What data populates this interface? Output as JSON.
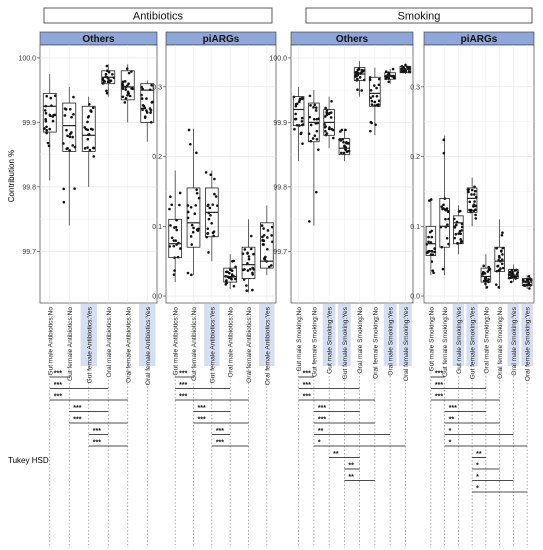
{
  "figure": {
    "y_label": "Contribution %",
    "tukey_label": "Tukey HSD",
    "groups": [
      {
        "title": "Antibiotics",
        "panels": [
          {
            "strip": "Others"
          },
          {
            "strip": "piARGs"
          }
        ]
      },
      {
        "title": "Smoking",
        "panels": [
          {
            "strip": "Others"
          },
          {
            "strip": "piARGs"
          }
        ]
      }
    ]
  },
  "chart_data": [
    {
      "type": "boxplot",
      "group": "Antibiotics",
      "panel": "Others",
      "ylim": [
        99.62,
        100.02
      ],
      "y_ticks": [
        "99.7",
        "99.8",
        "99.9",
        "100.0"
      ],
      "grid": true,
      "categories": [
        "Gut male Antibiotics:No",
        "Gut female Antibiotics:No",
        "Gut female Antibiotics:Yes",
        "Oral male Antibiotics:No",
        "Oral female Antibiotics:No",
        "Oral female Antibiotics:Yes"
      ],
      "highlighted": [
        false,
        false,
        true,
        false,
        false,
        true
      ],
      "boxes": [
        {
          "q1": 99.885,
          "median": 99.925,
          "q3": 99.945,
          "lo": 99.81,
          "hi": 99.975
        },
        {
          "q1": 99.855,
          "median": 99.895,
          "q3": 99.93,
          "lo": 99.74,
          "hi": 99.955
        },
        {
          "q1": 99.855,
          "median": 99.88,
          "q3": 99.925,
          "lo": 99.8,
          "hi": 99.94
        },
        {
          "q1": 99.96,
          "median": 99.97,
          "q3": 99.98,
          "lo": 99.94,
          "hi": 99.99
        },
        {
          "q1": 99.935,
          "median": 99.955,
          "q3": 99.98,
          "lo": 99.9,
          "hi": 99.99
        },
        {
          "q1": 99.9,
          "median": 99.95,
          "q3": 99.96,
          "lo": 99.87,
          "hi": 99.965
        }
      ],
      "significance": [
        {
          "a": 0,
          "b": 1,
          "label": "***"
        },
        {
          "a": 0,
          "b": 3,
          "label": "***"
        },
        {
          "a": 0,
          "b": 4,
          "label": "***"
        },
        {
          "a": 1,
          "b": 3,
          "label": "***"
        },
        {
          "a": 1,
          "b": 4,
          "label": "***"
        },
        {
          "a": 2,
          "b": 3,
          "label": "***"
        },
        {
          "a": 2,
          "b": 4,
          "label": "***"
        }
      ]
    },
    {
      "type": "boxplot",
      "group": "Antibiotics",
      "panel": "piARGs",
      "ylim": [
        -0.01,
        0.36
      ],
      "y_ticks": [
        "0.0",
        "0.1",
        "0.2",
        "0.3"
      ],
      "grid": true,
      "categories": [
        "Gut male Antibiotics:No",
        "Gut female Antibiotics:No",
        "Gut female Antibiotics:Yes",
        "Oral male Antibiotics:No",
        "Oral female Antibiotics:No",
        "Oral female Antibiotics:Yes"
      ],
      "highlighted": [
        false,
        false,
        true,
        false,
        false,
        true
      ],
      "boxes": [
        {
          "q1": 0.055,
          "median": 0.075,
          "q3": 0.11,
          "lo": 0.02,
          "hi": 0.18
        },
        {
          "q1": 0.07,
          "median": 0.105,
          "q3": 0.155,
          "lo": 0.03,
          "hi": 0.24
        },
        {
          "q1": 0.085,
          "median": 0.12,
          "q3": 0.155,
          "lo": 0.05,
          "hi": 0.18
        },
        {
          "q1": 0.02,
          "median": 0.028,
          "q3": 0.04,
          "lo": 0.01,
          "hi": 0.06
        },
        {
          "q1": 0.025,
          "median": 0.045,
          "q3": 0.07,
          "lo": 0.005,
          "hi": 0.11
        },
        {
          "q1": 0.04,
          "median": 0.05,
          "q3": 0.105,
          "lo": 0.03,
          "hi": 0.13
        }
      ],
      "significance": [
        {
          "a": 0,
          "b": 1,
          "label": "***"
        },
        {
          "a": 0,
          "b": 3,
          "label": "***"
        },
        {
          "a": 0,
          "b": 4,
          "label": "***"
        },
        {
          "a": 1,
          "b": 3,
          "label": "***"
        },
        {
          "a": 1,
          "b": 4,
          "label": "***"
        },
        {
          "a": 2,
          "b": 3,
          "label": "***"
        },
        {
          "a": 2,
          "b": 4,
          "label": "***"
        }
      ]
    },
    {
      "type": "boxplot",
      "group": "Smoking",
      "panel": "Others",
      "ylim": [
        99.62,
        100.02
      ],
      "y_ticks": [
        "99.7",
        "99.8",
        "99.9",
        "100.0"
      ],
      "grid": true,
      "categories": [
        "Gut male Smoking:No",
        "Gut female Smoking:No",
        "Gut male Smoking:Yes",
        "Gut female Smoking:Yes",
        "Oral male Smoking:No",
        "Oral female Smoking:No",
        "Oral male Smoking:Yes",
        "Oral female Smoking:Yes"
      ],
      "highlighted": [
        false,
        false,
        true,
        true,
        false,
        false,
        true,
        true
      ],
      "boxes": [
        {
          "q1": 99.895,
          "median": 99.92,
          "q3": 99.94,
          "lo": 99.84,
          "hi": 99.955
        },
        {
          "q1": 99.87,
          "median": 99.9,
          "q3": 99.93,
          "lo": 99.74,
          "hi": 99.95
        },
        {
          "q1": 99.88,
          "median": 99.9,
          "q3": 99.92,
          "lo": 99.86,
          "hi": 99.94
        },
        {
          "q1": 99.85,
          "median": 99.86,
          "q3": 99.875,
          "lo": 99.84,
          "hi": 99.89
        },
        {
          "q1": 99.965,
          "median": 99.975,
          "q3": 99.985,
          "lo": 99.94,
          "hi": 99.995
        },
        {
          "q1": 99.925,
          "median": 99.945,
          "q3": 99.97,
          "lo": 99.88,
          "hi": 99.985
        },
        {
          "q1": 99.967,
          "median": 99.972,
          "q3": 99.977,
          "lo": 99.96,
          "hi": 99.983
        },
        {
          "q1": 99.977,
          "median": 99.983,
          "q3": 99.987,
          "lo": 99.975,
          "hi": 99.99
        }
      ],
      "significance": [
        {
          "a": 0,
          "b": 1,
          "label": "***"
        },
        {
          "a": 0,
          "b": 4,
          "label": "***"
        },
        {
          "a": 0,
          "b": 5,
          "label": "***"
        },
        {
          "a": 1,
          "b": 4,
          "label": "***"
        },
        {
          "a": 1,
          "b": 5,
          "label": "***"
        },
        {
          "a": 1,
          "b": 6,
          "label": "**"
        },
        {
          "a": 1,
          "b": 7,
          "label": "*"
        },
        {
          "a": 2,
          "b": 4,
          "label": "**"
        },
        {
          "a": 3,
          "b": 4,
          "label": "**"
        },
        {
          "a": 3,
          "b": 5,
          "label": "**"
        }
      ]
    },
    {
      "type": "boxplot",
      "group": "Smoking",
      "panel": "piARGs",
      "ylim": [
        -0.01,
        0.36
      ],
      "y_ticks": [
        "0.0",
        "0.1",
        "0.2",
        "0.3"
      ],
      "grid": true,
      "categories": [
        "Gut male Smoking:No",
        "Gut female Smoking:No",
        "Gut male Smoking:Yes",
        "Gut female Smoking:Yes",
        "Oral male Smoking:No",
        "Oral female Smoking:No",
        "Oral male Smoking:Yes",
        "Oral female Smoking:Yes"
      ],
      "highlighted": [
        false,
        false,
        true,
        true,
        false,
        false,
        true,
        true
      ],
      "boxes": [
        {
          "q1": 0.058,
          "median": 0.075,
          "q3": 0.1,
          "lo": 0.03,
          "hi": 0.14
        },
        {
          "q1": 0.07,
          "median": 0.1,
          "q3": 0.14,
          "lo": 0.03,
          "hi": 0.23
        },
        {
          "q1": 0.075,
          "median": 0.105,
          "q3": 0.115,
          "lo": 0.06,
          "hi": 0.13
        },
        {
          "q1": 0.12,
          "median": 0.14,
          "q3": 0.155,
          "lo": 0.1,
          "hi": 0.17
        },
        {
          "q1": 0.02,
          "median": 0.028,
          "q3": 0.04,
          "lo": 0.01,
          "hi": 0.06
        },
        {
          "q1": 0.035,
          "median": 0.05,
          "q3": 0.07,
          "lo": 0.01,
          "hi": 0.11
        },
        {
          "q1": 0.025,
          "median": 0.03,
          "q3": 0.038,
          "lo": 0.02,
          "hi": 0.045
        },
        {
          "q1": 0.015,
          "median": 0.02,
          "q3": 0.025,
          "lo": 0.01,
          "hi": 0.03
        }
      ],
      "significance": [
        {
          "a": 0,
          "b": 1,
          "label": "***"
        },
        {
          "a": 0,
          "b": 4,
          "label": "***"
        },
        {
          "a": 0,
          "b": 5,
          "label": "***"
        },
        {
          "a": 1,
          "b": 4,
          "label": "***"
        },
        {
          "a": 1,
          "b": 5,
          "label": "**"
        },
        {
          "a": 1,
          "b": 6,
          "label": "*"
        },
        {
          "a": 1,
          "b": 7,
          "label": "*"
        },
        {
          "a": 3,
          "b": 4,
          "label": "**"
        },
        {
          "a": 3,
          "b": 5,
          "label": "*"
        },
        {
          "a": 3,
          "b": 6,
          "label": "*"
        },
        {
          "a": 3,
          "b": 7,
          "label": "*"
        }
      ]
    }
  ]
}
